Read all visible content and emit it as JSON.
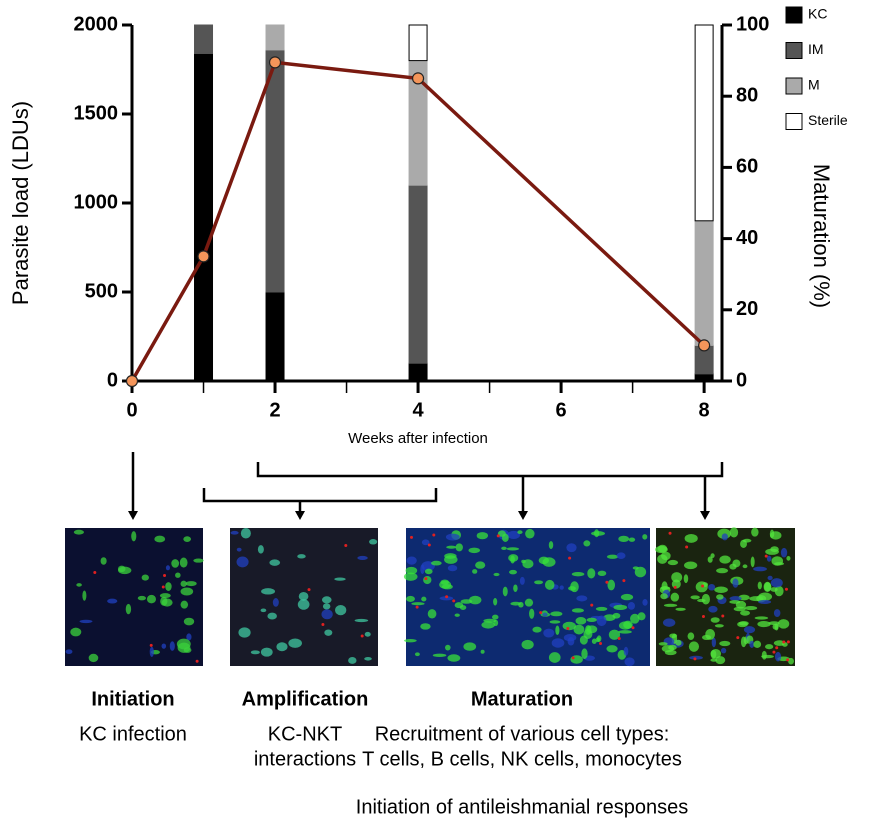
{
  "chart_data": {
    "type": "combo",
    "ylabel": "Parasite load (LDUs)",
    "y2label": "Maturation (%)",
    "xlabel": "Weeks after infection",
    "xlim": [
      0,
      8.25
    ],
    "xticks": [
      0,
      2,
      4,
      6,
      8
    ],
    "xminor_ticks": [
      1,
      3,
      5,
      7
    ],
    "ylim": [
      0,
      2000
    ],
    "yticks": [
      0,
      500,
      1000,
      1500,
      2000
    ],
    "y2lim": [
      0,
      100
    ],
    "y2ticks": [
      0,
      20,
      40,
      60,
      80,
      100
    ],
    "x": [
      1,
      2,
      4,
      8
    ],
    "series": [
      {
        "name": "KC",
        "type": "bar",
        "axis": "y2",
        "color": "#000000",
        "values": [
          92,
          25,
          5,
          2
        ]
      },
      {
        "name": "IM",
        "type": "bar",
        "axis": "y2",
        "color": "#555555",
        "values": [
          8,
          68,
          50,
          8
        ]
      },
      {
        "name": "M",
        "type": "bar",
        "axis": "y2",
        "color": "#aaaaaa",
        "values": [
          0,
          7,
          35,
          35
        ]
      },
      {
        "name": "Sterile",
        "type": "bar",
        "axis": "y2",
        "color": "#ffffff",
        "values": [
          0,
          0,
          10,
          55
        ]
      },
      {
        "type": "line",
        "color": "#7a1a10",
        "marker_color": "#f4955a",
        "x": [
          0,
          1,
          2,
          4,
          8
        ],
        "values": [
          0,
          700,
          1790,
          1700,
          200
        ]
      }
    ],
    "legend": "top-right"
  },
  "stages": [
    {
      "title": "Initiation",
      "lines": [
        "KC infection"
      ]
    },
    {
      "title": "Amplification",
      "lines": [
        "KC-NKT",
        "interactions"
      ]
    },
    {
      "title": "Maturation",
      "lines": [
        "Recruitment of various cell types:",
        "T cells, B cells, NK cells, monocytes",
        "Initiation of antileishmanial responses"
      ]
    }
  ]
}
